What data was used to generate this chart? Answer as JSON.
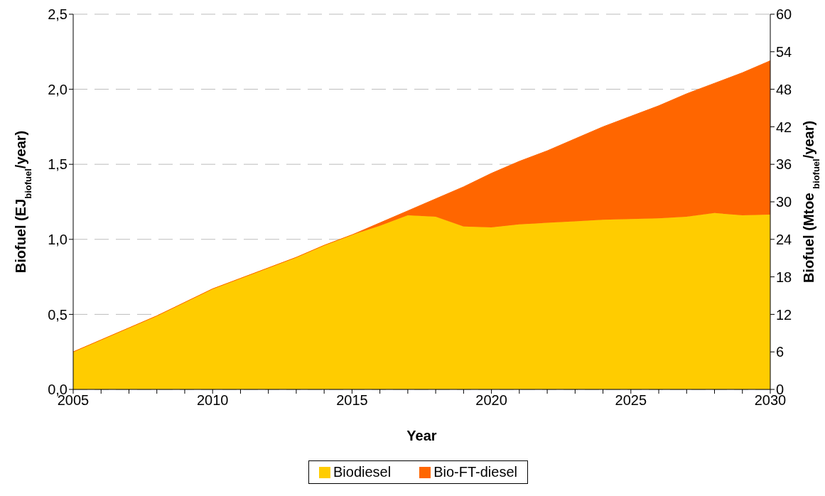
{
  "chart_data": {
    "type": "area",
    "stacked": true,
    "xlabel": "Year",
    "ylabel": "Biofuel (EJ$_{biofuel}$/year)",
    "y2label": "Biofuel (Mtoe $_{biofuel}$/year)",
    "x": [
      2005,
      2006,
      2007,
      2008,
      2009,
      2010,
      2011,
      2012,
      2013,
      2014,
      2015,
      2016,
      2017,
      2018,
      2019,
      2020,
      2021,
      2022,
      2023,
      2024,
      2025,
      2026,
      2027,
      2028,
      2029,
      2030
    ],
    "series": [
      {
        "name": "Biodiesel",
        "color": "#ffcc00",
        "values": [
          0.25,
          0.33,
          0.41,
          0.49,
          0.58,
          0.67,
          0.74,
          0.81,
          0.88,
          0.96,
          1.03,
          1.09,
          1.16,
          1.15,
          1.085,
          1.08,
          1.1,
          1.11,
          1.12,
          1.13,
          1.135,
          1.14,
          1.15,
          1.175,
          1.16,
          1.165
        ]
      },
      {
        "name": "Bio-FT-diesel",
        "color": "#ff6600",
        "values": [
          0,
          0,
          0,
          0,
          0,
          0,
          0,
          0,
          0,
          0,
          0,
          0.02,
          0.03,
          0.12,
          0.265,
          0.36,
          0.42,
          0.48,
          0.55,
          0.62,
          0.685,
          0.75,
          0.82,
          0.865,
          0.95,
          1.025
        ]
      }
    ],
    "xlim": [
      2005,
      2030
    ],
    "xticks": [
      2005,
      {
        "value": 2006,
        "label": null
      },
      {
        "value": 2007,
        "label": null
      },
      {
        "value": 2008,
        "label": null
      },
      {
        "value": 2009,
        "label": null
      },
      2010,
      {
        "value": 2011,
        "label": null
      },
      {
        "value": 2012,
        "label": null
      },
      {
        "value": 2013,
        "label": null
      },
      {
        "value": 2014,
        "label": null
      },
      2015,
      {
        "value": 2016,
        "label": null
      },
      {
        "value": 2017,
        "label": null
      },
      {
        "value": 2018,
        "label": null
      },
      {
        "value": 2019,
        "label": null
      },
      2020,
      {
        "value": 2021,
        "label": null
      },
      {
        "value": 2022,
        "label": null
      },
      {
        "value": 2023,
        "label": null
      },
      {
        "value": 2024,
        "label": null
      },
      2025,
      {
        "value": 2026,
        "label": null
      },
      {
        "value": 2027,
        "label": null
      },
      {
        "value": 2028,
        "label": null
      },
      {
        "value": 2029,
        "label": null
      },
      2030
    ],
    "ylim": [
      0,
      2.5
    ],
    "yticks": [
      {
        "value": 0,
        "label": "0,0"
      },
      {
        "value": 0.5,
        "label": "0,5"
      },
      {
        "value": 1,
        "label": "1,0"
      },
      {
        "value": 1.5,
        "label": "1,5"
      },
      {
        "value": 2,
        "label": "2,0"
      },
      {
        "value": 2.5,
        "label": "2,5"
      }
    ],
    "y2lim": [
      0,
      60
    ],
    "y2ticks": [
      0,
      6,
      12,
      18,
      24,
      30,
      36,
      42,
      48,
      54,
      60
    ],
    "grid": "y",
    "legend": "bottom"
  }
}
